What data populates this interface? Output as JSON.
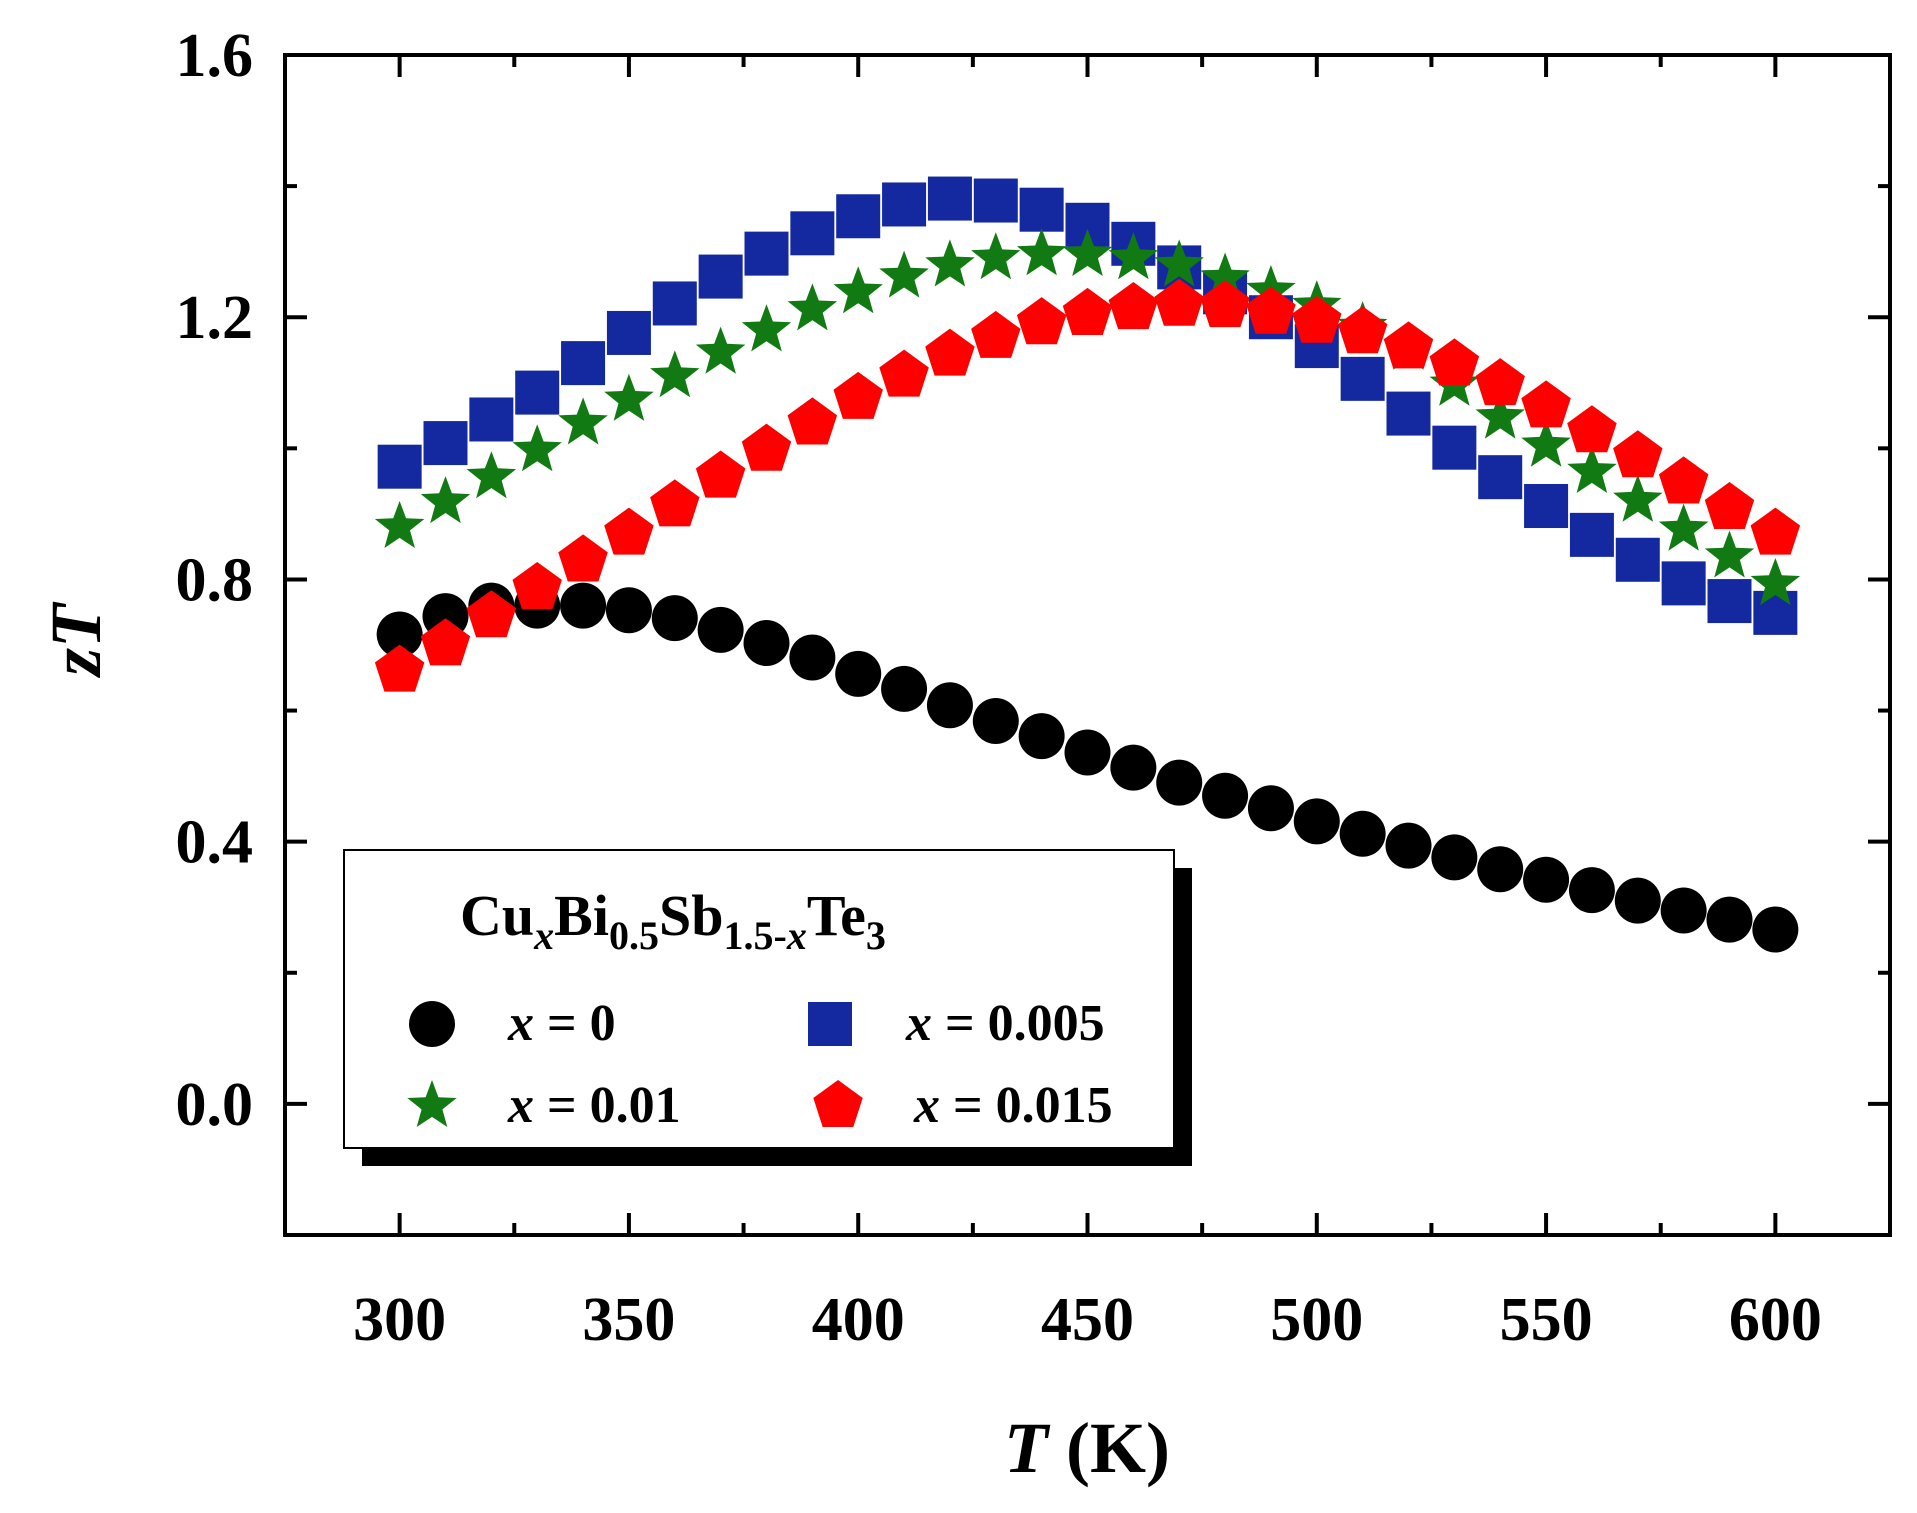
{
  "chart_data": {
    "type": "scatter",
    "title": "",
    "xlabel": {
      "symbol": "T",
      "unit": " (K)"
    },
    "ylabel": {
      "symbol": "zT"
    },
    "xlim": [
      275,
      625
    ],
    "ylim": [
      -0.2,
      1.6
    ],
    "xticks": [
      300,
      350,
      400,
      450,
      500,
      550,
      600
    ],
    "xtick_labels": [
      "300",
      "350",
      "400",
      "450",
      "500",
      "550",
      "600"
    ],
    "yticks": [
      0.0,
      0.4,
      0.8,
      1.2,
      1.6
    ],
    "ytick_labels": [
      "0.0",
      "0.4",
      "0.8",
      "1.2",
      "1.6"
    ],
    "legend": {
      "position": "bottom-left",
      "title_parts": [
        "Cu",
        "x",
        "Bi",
        "0.5",
        "Sb",
        "1.5-",
        "x",
        "Te",
        "3"
      ],
      "entries": [
        {
          "var": "x",
          "eq": " = 0"
        },
        {
          "var": "x",
          "eq": " = 0.005"
        },
        {
          "var": "x",
          "eq": " = 0.01"
        },
        {
          "var": "x",
          "eq": " = 0.015"
        }
      ]
    },
    "x": [
      300,
      310,
      320,
      330,
      340,
      350,
      360,
      370,
      380,
      390,
      400,
      410,
      420,
      430,
      440,
      450,
      460,
      470,
      480,
      490,
      500,
      510,
      520,
      530,
      540,
      550,
      560,
      570,
      580,
      590,
      600
    ],
    "series": [
      {
        "name": "x = 0",
        "marker": "circle",
        "color": "#000000",
        "values": [
          0.716,
          0.744,
          0.76,
          0.76,
          0.76,
          0.753,
          0.741,
          0.723,
          0.703,
          0.681,
          0.656,
          0.633,
          0.608,
          0.584,
          0.561,
          0.536,
          0.513,
          0.49,
          0.47,
          0.451,
          0.431,
          0.412,
          0.394,
          0.376,
          0.358,
          0.342,
          0.326,
          0.31,
          0.295,
          0.281,
          0.266
        ]
      },
      {
        "name": "x = 0.005",
        "marker": "square",
        "color": "#1428a0",
        "values": [
          0.972,
          1.008,
          1.044,
          1.085,
          1.13,
          1.176,
          1.221,
          1.262,
          1.297,
          1.328,
          1.354,
          1.372,
          1.381,
          1.378,
          1.364,
          1.341,
          1.312,
          1.276,
          1.238,
          1.2,
          1.156,
          1.106,
          1.053,
          1.001,
          0.956,
          0.912,
          0.868,
          0.83,
          0.794,
          0.767,
          0.749
        ]
      },
      {
        "name": "x = 0.01",
        "marker": "star",
        "color": "#127a12",
        "values": [
          0.88,
          0.918,
          0.956,
          0.997,
          1.038,
          1.074,
          1.11,
          1.146,
          1.18,
          1.212,
          1.238,
          1.262,
          1.279,
          1.29,
          1.296,
          1.295,
          1.29,
          1.279,
          1.259,
          1.24,
          1.217,
          1.185,
          1.152,
          1.097,
          1.047,
          1.004,
          0.964,
          0.92,
          0.876,
          0.835,
          0.793
        ]
      },
      {
        "name": "x = 0.015",
        "marker": "pentagon",
        "color": "#ff0000",
        "values": [
          0.661,
          0.701,
          0.744,
          0.787,
          0.829,
          0.87,
          0.913,
          0.957,
          0.998,
          1.038,
          1.077,
          1.111,
          1.143,
          1.17,
          1.191,
          1.205,
          1.214,
          1.219,
          1.217,
          1.207,
          1.193,
          1.177,
          1.154,
          1.128,
          1.098,
          1.064,
          1.026,
          0.988,
          0.948,
          0.909,
          0.87
        ]
      }
    ]
  }
}
